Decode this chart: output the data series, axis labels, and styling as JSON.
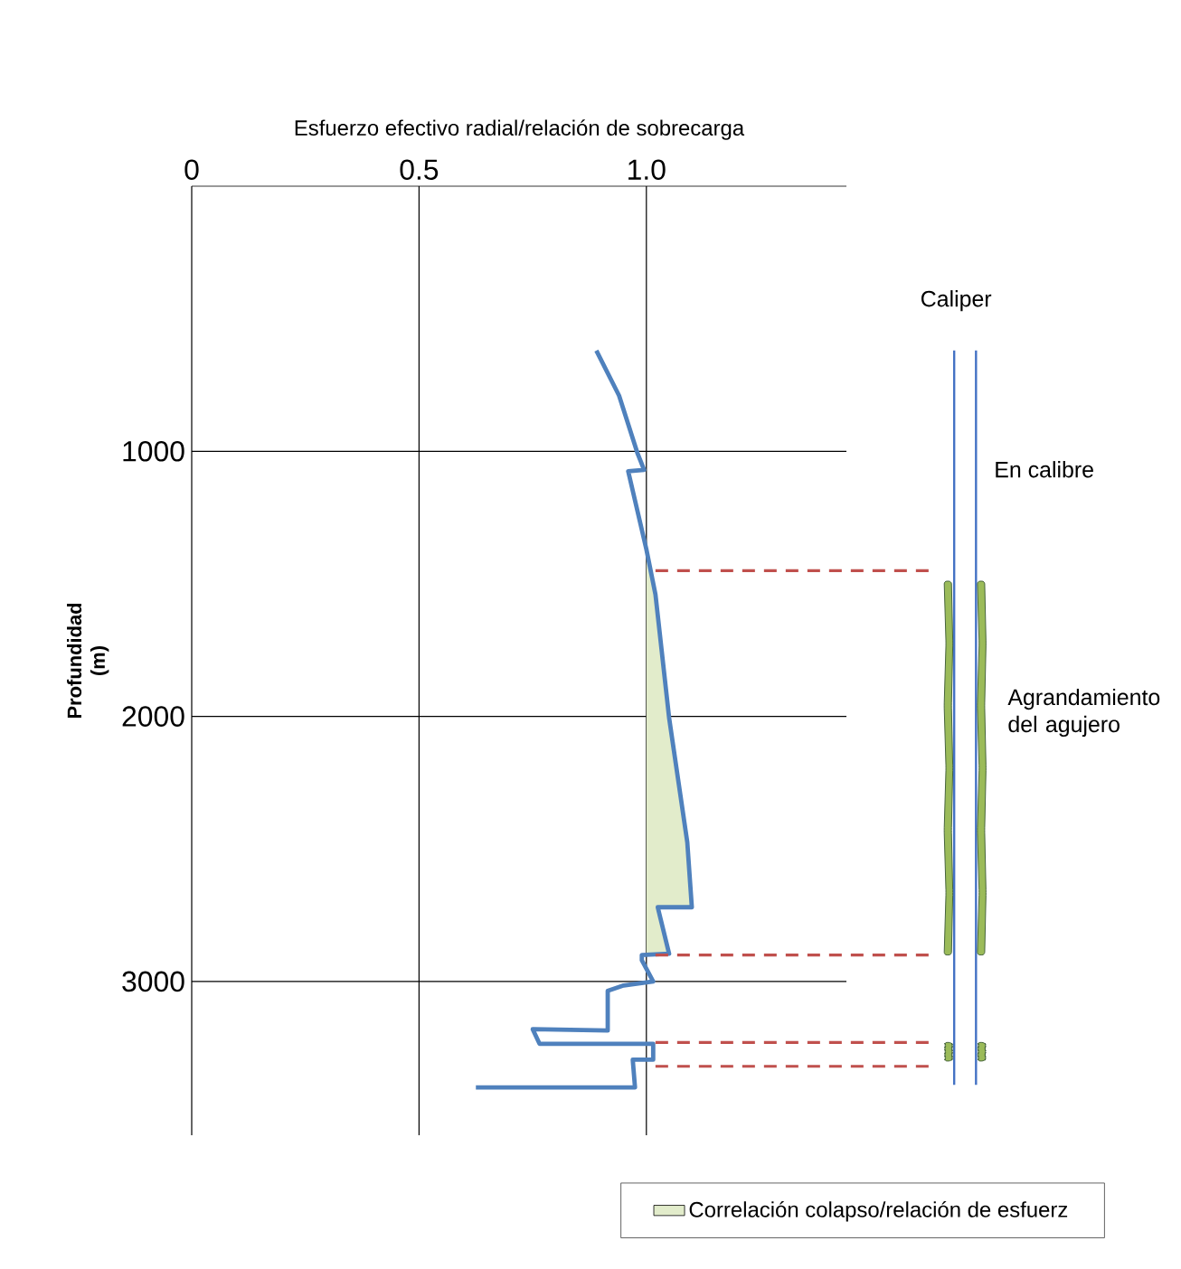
{
  "chart_data": {
    "type": "line",
    "xlabel": "Esfuerzo efectivo radial/relación de sobrecarga",
    "ylabel": "Profundidad (m)",
    "xlim": [
      0,
      1.44
    ],
    "ylim": [
      3580,
      0
    ],
    "xticks": [
      0,
      0.5,
      {
        "value": 1.0,
        "label": "1.0"
      }
    ],
    "yticks": [
      1000,
      2000,
      3000
    ],
    "grid": true,
    "legend": "bottom right",
    "series": [
      {
        "type": "area",
        "name": "Correlación colapso/relación de esfuerz",
        "color": "#e2eccb",
        "x": [
          1.0,
          1.02,
          1.05,
          1.09,
          1.1,
          1.025,
          1.05,
          1.0
        ],
        "values": [
          1400,
          1540,
          2005,
          2475,
          2720,
          2720,
          2895,
          2900
        ]
      },
      {
        "color": "#4f81bd",
        "x": [
          0.89,
          0.94,
          0.98,
          0.995,
          0.96,
          1.0,
          1.02,
          1.05,
          1.09,
          1.1,
          1.025,
          1.05,
          0.99,
          0.99,
          1.015,
          0.95,
          0.915,
          0.915,
          0.75,
          0.765,
          1.015,
          1.015,
          0.97,
          0.975,
          0.625
        ],
        "values": [
          620,
          790,
          1005,
          1070,
          1075,
          1370,
          1540,
          2005,
          2475,
          2720,
          2720,
          2895,
          2900,
          2920,
          3000,
          3015,
          3035,
          3185,
          3180,
          3235,
          3235,
          3295,
          3295,
          3400,
          3400
        ]
      }
    ],
    "ref_lines": [
      {
        "axis": "y",
        "value": 1450,
        "color": "#c0504d",
        "line_style": "dashed"
      },
      {
        "axis": "y",
        "value": 2900,
        "color": "#c0504d",
        "line_style": "dashed"
      },
      {
        "axis": "y",
        "value": 3230,
        "color": "#c0504d",
        "line_style": "dashed"
      },
      {
        "axis": "y",
        "value": 3320,
        "color": "#c0504d",
        "line_style": "dashed"
      }
    ],
    "annotations": [
      "Caliper",
      "En calibre",
      "Agrandamiento del agujero"
    ]
  }
}
